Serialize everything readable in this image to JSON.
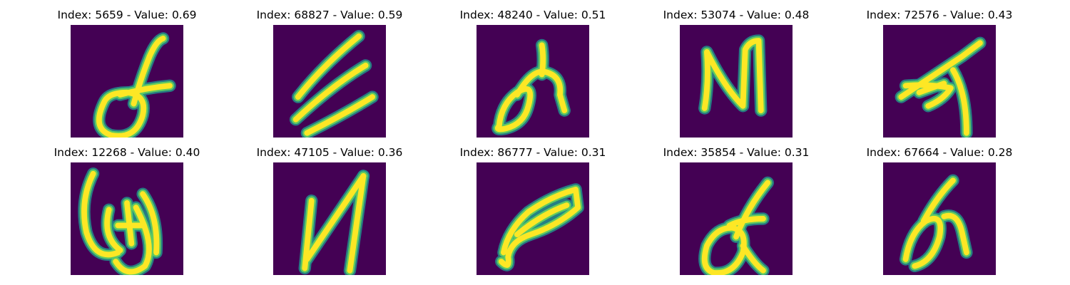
{
  "style": {
    "background": "#ffffff",
    "thumb_background": "#440154",
    "stroke_outer": "#21918c",
    "stroke_mid": "#5ec962",
    "stroke_inner": "#fde725"
  },
  "panels": [
    {
      "title": "Index: 5659 - Value: 0.69",
      "glyph": "loop-cross-icon"
    },
    {
      "title": "Index: 68827 - Value: 0.59",
      "glyph": "triple-stroke-icon"
    },
    {
      "title": "Index: 48240 - Value: 0.51",
      "glyph": "loop-hook-icon"
    },
    {
      "title": "Index: 53074 - Value: 0.48",
      "glyph": "n-shape-icon"
    },
    {
      "title": "Index: 72576 - Value: 0.43",
      "glyph": "arrow-blob-icon"
    },
    {
      "title": "Index: 12268 - Value: 0.40",
      "glyph": "curly-loops-icon"
    },
    {
      "title": "Index: 47105 - Value: 0.36",
      "glyph": "thin-n-shape-icon"
    },
    {
      "title": "Index: 86777 - Value: 0.31",
      "glyph": "tilted-loop-icon"
    },
    {
      "title": "Index: 35854 - Value: 0.31",
      "glyph": "loop-tail-icon"
    },
    {
      "title": "Index: 67664 - Value: 0.28",
      "glyph": "slanted-loop-icon"
    }
  ]
}
